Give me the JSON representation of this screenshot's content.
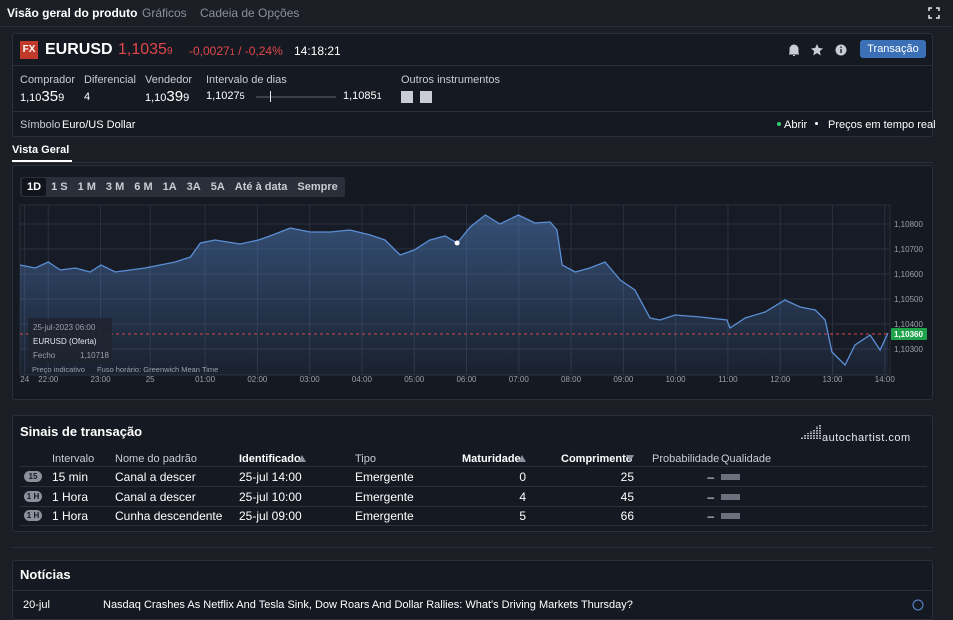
{
  "tabs": [
    "Visão geral do produto",
    "Gráficos",
    "Cadeia de Opções"
  ],
  "instrument": {
    "badge": "FX",
    "symbol": "EURUSD",
    "price_main": "1,1035",
    "price_small": "9",
    "change": "-0,0027",
    "change_small": "1",
    "change_pct": "/ -0,24%",
    "time": "14:18:21",
    "trade_button": "Transação"
  },
  "quote": {
    "bid_label": "Comprador",
    "bid": [
      "1,10",
      "35",
      "9"
    ],
    "spread_label": "Diferencial",
    "spread": "4",
    "ask_label": "Vendedor",
    "ask": [
      "1,10",
      "39",
      "9"
    ],
    "range_label": "Intervalo de dias",
    "range_low": [
      "1,1027",
      "5"
    ],
    "range_high": [
      "1,1085",
      "1"
    ],
    "other_label": "Outros instrumentos"
  },
  "symbol_row": {
    "label": "Símbolo",
    "value": "Euro/US Dollar",
    "status": "Abrir",
    "realtime": "Preços em tempo real"
  },
  "section_tab": "Vista Geral",
  "periods": [
    "1D",
    "1 S",
    "1 M",
    "3 M",
    "6 M",
    "1A",
    "3A",
    "5A",
    "Até à data",
    "Sempre"
  ],
  "chart": {
    "type": "area",
    "color": "#5b8fd6",
    "series": {
      "name": "EURUSD (Oferta)",
      "x": [
        -0.54,
        -0.25,
        0,
        0.23,
        0.52,
        0.8,
        1.01,
        1.28,
        1.57,
        1.85,
        2.14,
        2.43,
        2.72,
        2.91,
        3.19,
        3.67,
        4.02,
        4.24,
        4.63,
        5.01,
        5.39,
        5.77,
        6.16,
        6.44,
        6.73,
        7.0,
        7.3,
        7.59,
        7.82,
        8.07,
        8.36,
        8.64,
        8.99,
        9.31,
        9.6,
        9.73,
        9.83,
        10.08,
        10.36,
        10.65,
        10.94,
        11.22,
        11.51,
        11.7,
        11.99,
        12.47,
        12.98,
        13.04,
        13.33,
        13.71,
        14.09,
        14.38,
        14.67,
        14.86,
        14.99,
        15.24,
        15.43,
        15.72,
        15.91,
        16.06
      ],
      "values": [
        1.10636,
        1.10624,
        1.10648,
        1.10616,
        1.10624,
        1.10608,
        1.10636,
        1.10608,
        1.10616,
        1.10624,
        1.10636,
        1.10648,
        1.10668,
        1.10724,
        1.10736,
        1.1072,
        1.10736,
        1.10752,
        1.10784,
        1.10768,
        1.10768,
        1.10776,
        1.10756,
        1.10736,
        1.10676,
        1.10696,
        1.10736,
        1.10752,
        1.10724,
        1.10788,
        1.10836,
        1.108,
        1.10836,
        1.10804,
        1.10808,
        1.10776,
        1.10636,
        1.10608,
        1.10624,
        1.10648,
        1.10576,
        1.10536,
        1.10424,
        1.10416,
        1.10436,
        1.10428,
        1.10416,
        1.10384,
        1.10424,
        1.10448,
        1.10496,
        1.10468,
        1.10456,
        1.10416,
        1.10288,
        1.10236,
        1.10316,
        1.10356,
        1.10296,
        1.10364
      ]
    },
    "xlim": [
      -0.54,
      16.1
    ],
    "ylim": [
      1.10196,
      1.10876
    ],
    "xticks": [
      {
        "value": -0.45,
        "label": "24"
      },
      {
        "value": 0,
        "label": "22:00"
      },
      {
        "value": 1,
        "label": "23:00"
      },
      {
        "value": 1.95,
        "label": "25"
      },
      {
        "value": 3,
        "label": "01:00"
      },
      {
        "value": 4,
        "label": "02:00"
      },
      {
        "value": 5,
        "label": "03:00"
      },
      {
        "value": 6,
        "label": "04:00"
      },
      {
        "value": 7,
        "label": "05:00"
      },
      {
        "value": 8,
        "label": "06:00"
      },
      {
        "value": 9,
        "label": "07:00"
      },
      {
        "value": 10,
        "label": "08:00"
      },
      {
        "value": 11,
        "label": "09:00"
      },
      {
        "value": 12,
        "label": "10:00"
      },
      {
        "value": 13,
        "label": "11:00"
      },
      {
        "value": 14,
        "label": "12:00"
      },
      {
        "value": 15,
        "label": "13:00"
      },
      {
        "value": 16,
        "label": "14:00"
      }
    ],
    "yticks": [
      {
        "value": 1.103,
        "label": "1,10300"
      },
      {
        "value": 1.104,
        "label": "1,10400"
      },
      {
        "value": 1.105,
        "label": "1,10500"
      },
      {
        "value": 1.106,
        "label": "1,10600"
      },
      {
        "value": 1.107,
        "label": "1,10700"
      },
      {
        "value": 1.108,
        "label": "1,10800"
      }
    ],
    "last_price": {
      "value": 1.1036,
      "label": "1,10360"
    },
    "tooltip": {
      "date": "25-jul-2023 06:00",
      "label": "Fecho",
      "value": "1,10718"
    },
    "footer": [
      "Preço indicativo",
      "Fuso horário: Greenwich Mean Time"
    ]
  },
  "signals": {
    "title": "Sinais de transação",
    "logo": "autochartist.com",
    "headers": [
      "Intervalo",
      "Nome do padrão",
      "Identificado",
      "Tipo",
      "Maturidade",
      "Comprimento",
      "Probabilidade",
      "Qualidade"
    ],
    "rows": [
      {
        "badge": "15",
        "interval": "15 min",
        "pattern": "Canal a descer",
        "identified": "25-jul 14:00",
        "type": "Emergente",
        "maturity": "0",
        "length": "25",
        "probability": "–"
      },
      {
        "badge": "1 H",
        "interval": "1 Hora",
        "pattern": "Canal a descer",
        "identified": "25-jul 10:00",
        "type": "Emergente",
        "maturity": "4",
        "length": "45",
        "probability": "–"
      },
      {
        "badge": "1 H",
        "interval": "1 Hora",
        "pattern": "Cunha descendente",
        "identified": "25-jul 09:00",
        "type": "Emergente",
        "maturity": "5",
        "length": "66",
        "probability": "–"
      }
    ]
  },
  "news": {
    "title": "Notícias",
    "items": [
      {
        "date": "20-jul",
        "headline": "Nasdaq Crashes As Netflix And Tesla Sink, Dow Roars And Dollar Rallies: What's Driving Markets Thursday?"
      }
    ]
  }
}
